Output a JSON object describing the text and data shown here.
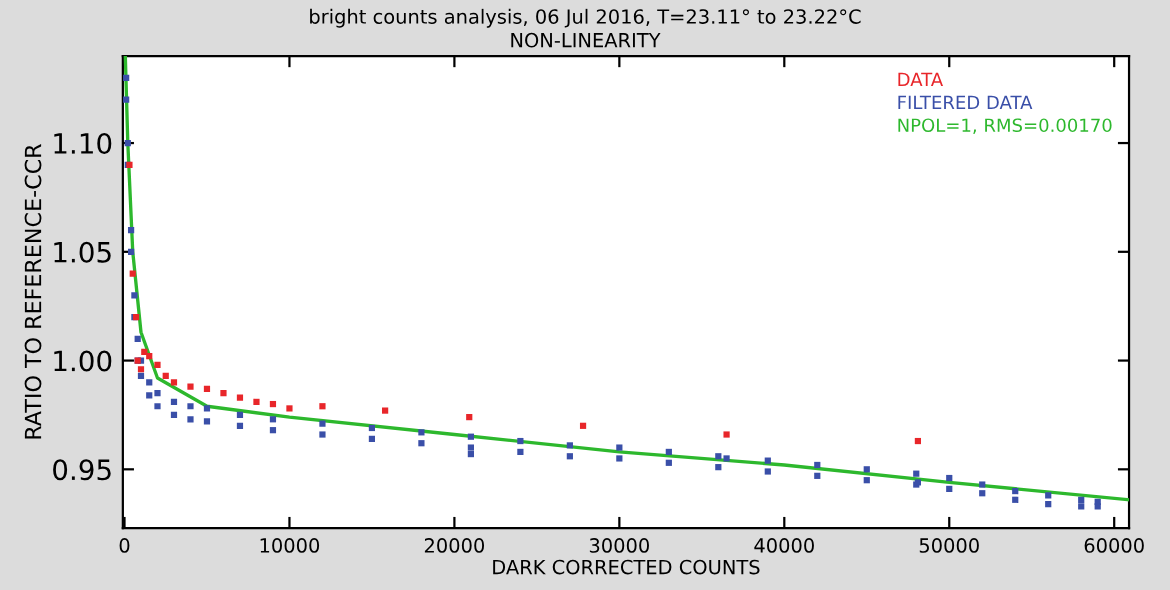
{
  "chart_data": {
    "type": "scatter",
    "title": "bright counts analysis, 06 Jul 2016, T=23.11° to 23.22°C",
    "subtitle": "NON-LINEARITY",
    "xlabel": "DARK CORRECTED COUNTS",
    "ylabel": "RATIO TO REFERENCE-CCR",
    "xlim": [
      -100,
      60900
    ],
    "ylim": [
      0.923,
      1.14
    ],
    "xticks": [
      0,
      10000,
      20000,
      30000,
      40000,
      50000,
      60000
    ],
    "yticks": [
      0.95,
      {
        "value": 1.0,
        "label": "1.00"
      },
      1.05,
      {
        "value": 1.1,
        "label": "1.10"
      }
    ],
    "grid": false,
    "legend": "top right",
    "series": [
      {
        "name": "DATA",
        "color": "#e8262a",
        "marker": "square",
        "x": [
          300,
          500,
          700,
          800,
          1000,
          1200,
          1500,
          2000,
          2500,
          3000,
          4000,
          5000,
          6000,
          7000,
          8000,
          9000,
          10000,
          12000,
          15800,
          20900,
          27800,
          36500,
          48100
        ],
        "values": [
          1.09,
          1.04,
          1.02,
          1.0,
          0.996,
          1.004,
          1.002,
          0.998,
          0.993,
          0.99,
          0.988,
          0.987,
          0.985,
          0.983,
          0.981,
          0.98,
          0.978,
          0.979,
          0.977,
          0.974,
          0.97,
          0.966,
          0.963
        ]
      },
      {
        "name": "FILTERED DATA",
        "color": "#3a4fa8",
        "marker": "square",
        "x": [
          100,
          200,
          400,
          600,
          800,
          1000,
          1500,
          2000,
          3000,
          4000,
          5000,
          7000,
          9000,
          12000,
          15000,
          18000,
          21000,
          24000,
          27000,
          30000,
          33000,
          36000,
          39000,
          42000,
          45000,
          48000,
          50000,
          52000,
          54000,
          56000,
          58000,
          59000,
          100,
          200,
          400,
          600,
          800,
          1000,
          1500,
          2000,
          3000,
          4000,
          5000,
          7000,
          9000,
          12000,
          15000,
          18000,
          21000,
          24000,
          27000,
          30000,
          33000,
          36000,
          39000,
          42000,
          45000,
          48000,
          50000,
          52000,
          54000,
          56000,
          58000,
          59000,
          21000,
          36500,
          48100
        ],
        "values": [
          1.13,
          1.1,
          1.06,
          1.03,
          1.01,
          1.0,
          0.99,
          0.985,
          0.981,
          0.979,
          0.978,
          0.975,
          0.973,
          0.971,
          0.969,
          0.967,
          0.965,
          0.963,
          0.961,
          0.96,
          0.958,
          0.956,
          0.954,
          0.952,
          0.95,
          0.948,
          0.946,
          0.943,
          0.94,
          0.938,
          0.936,
          0.935,
          1.12,
          1.09,
          1.05,
          1.02,
          1.0,
          0.993,
          0.984,
          0.979,
          0.975,
          0.973,
          0.972,
          0.97,
          0.968,
          0.966,
          0.964,
          0.962,
          0.96,
          0.958,
          0.956,
          0.955,
          0.953,
          0.951,
          0.949,
          0.947,
          0.945,
          0.943,
          0.941,
          0.939,
          0.936,
          0.934,
          0.933,
          0.933,
          0.957,
          0.955,
          0.944
        ]
      },
      {
        "name": "NPOL=1, RMS=0.00170",
        "color": "#2db82d",
        "type": "line",
        "x": [
          50,
          200,
          500,
          1000,
          2000,
          5000,
          10000,
          20000,
          30000,
          40000,
          50000,
          60900
        ],
        "values": [
          1.14,
          1.1,
          1.05,
          1.013,
          0.992,
          0.979,
          0.974,
          0.966,
          0.958,
          0.952,
          0.944,
          0.936
        ]
      }
    ]
  }
}
